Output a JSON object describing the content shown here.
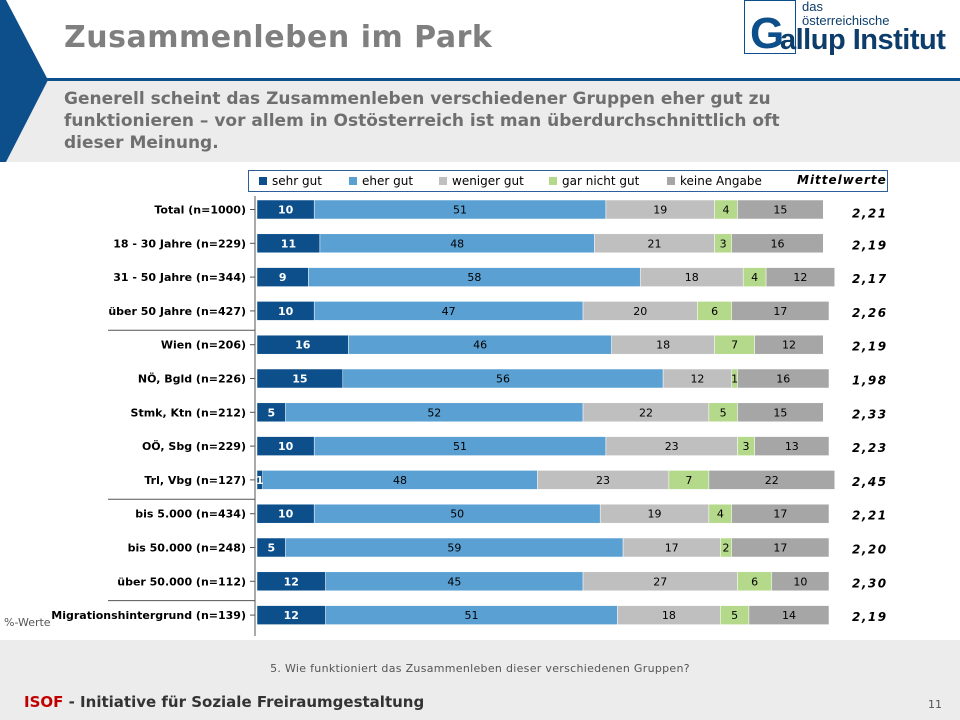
{
  "title": "Zusammenleben im Park",
  "subtitle": "Generell scheint das Zusammenleben verschiedener Gruppen eher gut zu funktionieren – vor allem in Ostösterreich ist man überdurchschnittlich oft dieser Meinung.",
  "logo": {
    "line1": "das",
    "line2": "österreichische",
    "main": "allup Institut",
    "initial": "G"
  },
  "legend": {
    "items": [
      "sehr gut",
      "eher gut",
      "weniger gut",
      "gar nicht gut",
      "keine Angabe"
    ],
    "mean_label": "Mittelwerte"
  },
  "colors": {
    "sehr_gut": "#0d4f8b",
    "eher_gut": "#5aa0d2",
    "weniger_gut": "#bfbfbf",
    "gar_nicht_gut": "#b5d98b",
    "keine_angabe": "#a6a6a6",
    "accent": "#0d4f8b"
  },
  "chart_data": {
    "type": "bar",
    "orientation": "horizontal-stacked",
    "unit": "%",
    "categories": [
      "Total (n=1000)",
      "18 - 30 Jahre (n=229)",
      "31 - 50 Jahre (n=344)",
      "über 50 Jahre (n=427)",
      "Wien (n=206)",
      "NÖ, Bgld (n=226)",
      "Stmk, Ktn (n=212)",
      "OÖ, Sbg (n=229)",
      "Trl, Vbg (n=127)",
      "bis 5.000 (n=434)",
      "bis 50.000 (n=248)",
      "über 50.000 (n=112)",
      "Migrationshintergrund (n=139)"
    ],
    "series": [
      {
        "name": "sehr gut",
        "values": [
          10,
          11,
          9,
          10,
          16,
          15,
          5,
          10,
          1,
          10,
          5,
          12,
          12
        ]
      },
      {
        "name": "eher gut",
        "values": [
          51,
          48,
          58,
          47,
          46,
          56,
          52,
          51,
          48,
          50,
          59,
          45,
          51
        ]
      },
      {
        "name": "weniger gut",
        "values": [
          19,
          21,
          18,
          20,
          18,
          12,
          22,
          23,
          23,
          19,
          17,
          27,
          18
        ]
      },
      {
        "name": "gar nicht gut",
        "values": [
          4,
          3,
          4,
          6,
          7,
          1,
          5,
          3,
          7,
          4,
          2,
          6,
          5
        ]
      },
      {
        "name": "keine Angabe",
        "values": [
          15,
          16,
          12,
          17,
          12,
          16,
          15,
          13,
          22,
          17,
          17,
          10,
          14
        ]
      }
    ],
    "means": [
      "2,21",
      "2,19",
      "2,17",
      "2,26",
      "2,19",
      "1,98",
      "2,33",
      "2,23",
      "2,45",
      "2,21",
      "2,20",
      "2,30",
      "2,19"
    ],
    "group_breaks_after": [
      3,
      8,
      11
    ]
  },
  "pct_note": "%-Werte",
  "question": "5. Wie funktioniert das Zusammenleben dieser verschiedenen Gruppen?",
  "footer": {
    "isof": "ISOF",
    "rest": " - Initiative für Soziale Freiraumgestaltung"
  },
  "page_number": "11"
}
